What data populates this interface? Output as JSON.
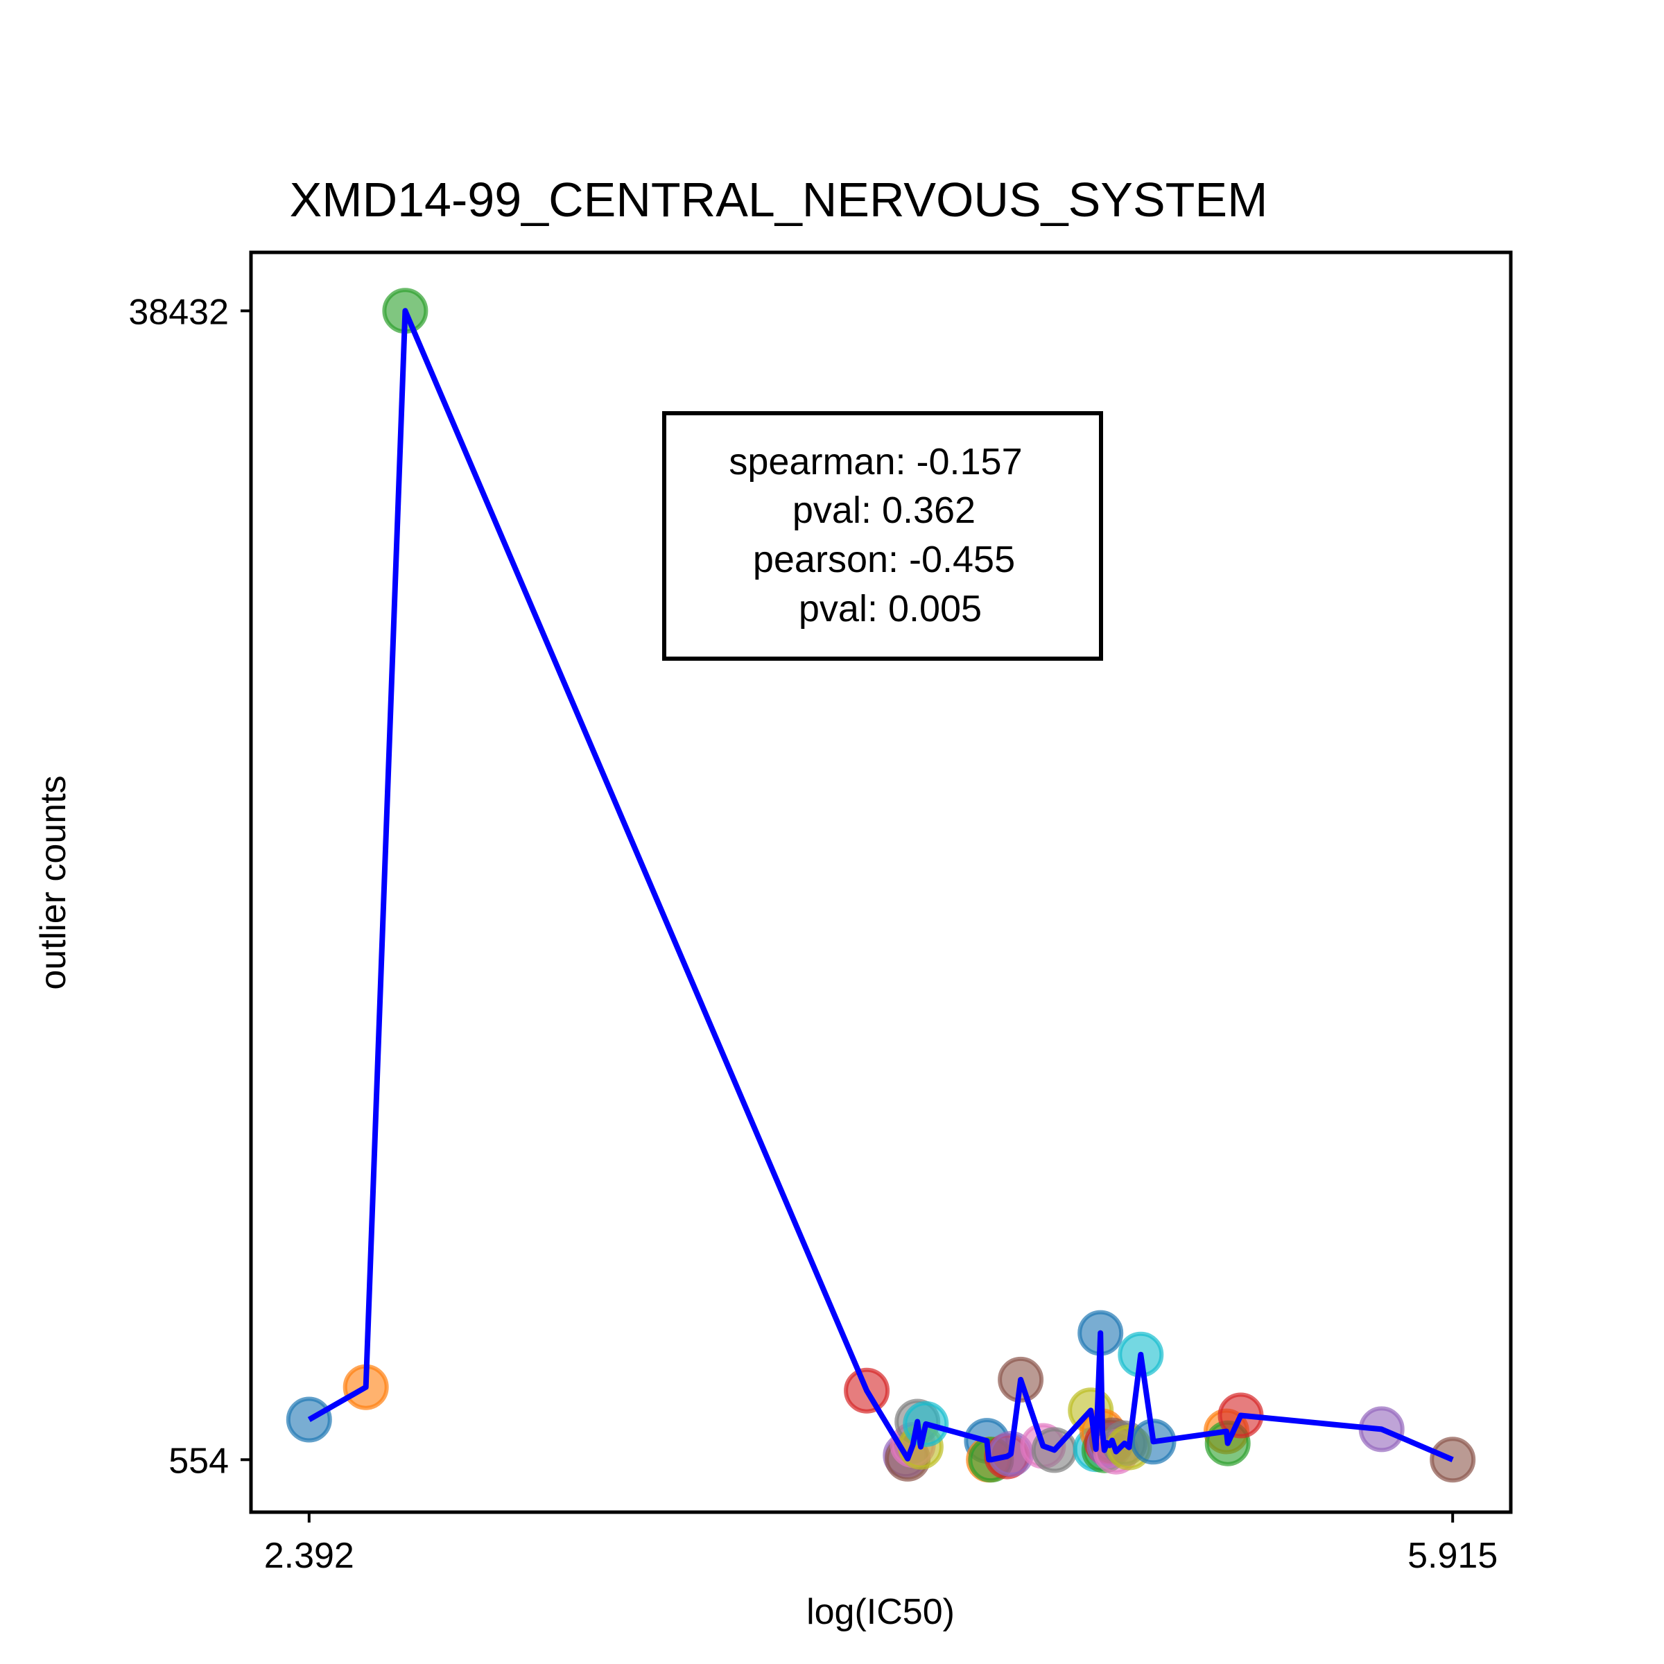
{
  "chart_data": {
    "type": "scatter",
    "title": "XMD14-99_CENTRAL_NERVOUS_SYSTEM",
    "xlabel": "log(IC50)",
    "ylabel": "outlier counts",
    "xlim": [
      2.213,
      6.094
    ],
    "ylim": [
      -1176,
      40360
    ],
    "xticks": [
      {
        "value": 2.392,
        "label": "2.392"
      },
      {
        "value": 5.915,
        "label": "5.915"
      }
    ],
    "yticks": [
      {
        "value": 554,
        "label": "554"
      },
      {
        "value": 38432,
        "label": "38432"
      }
    ],
    "line_color": "#0000ff",
    "stats_box": {
      "lines": [
        "spearman: -0.157",
        "pval: 0.362",
        "pearson: -0.455",
        "pval: 0.005"
      ]
    },
    "points": [
      {
        "x": 2.392,
        "y": 1876,
        "color": "#1f77b4"
      },
      {
        "x": 2.567,
        "y": 2945,
        "color": "#ff7f0e"
      },
      {
        "x": 2.688,
        "y": 38432,
        "color": "#2ca02c"
      },
      {
        "x": 4.11,
        "y": 2831,
        "color": "#d62728"
      },
      {
        "x": 4.23,
        "y": 696,
        "color": "#9467bd"
      },
      {
        "x": 4.236,
        "y": 586,
        "color": "#8c564b"
      },
      {
        "x": 4.252,
        "y": 1038,
        "color": "#e377c2"
      },
      {
        "x": 4.266,
        "y": 1808,
        "color": "#7f7f7f"
      },
      {
        "x": 4.276,
        "y": 980,
        "color": "#bcbd22"
      },
      {
        "x": 4.292,
        "y": 1730,
        "color": "#17becf"
      },
      {
        "x": 4.48,
        "y": 1176,
        "color": "#1f77b4"
      },
      {
        "x": 4.486,
        "y": 554,
        "color": "#ff7f0e"
      },
      {
        "x": 4.493,
        "y": 554,
        "color": "#2ca02c"
      },
      {
        "x": 4.542,
        "y": 663,
        "color": "#d62728"
      },
      {
        "x": 4.554,
        "y": 744,
        "color": "#9467bd"
      },
      {
        "x": 4.584,
        "y": 3192,
        "color": "#8c564b"
      },
      {
        "x": 4.653,
        "y": 1008,
        "color": "#e377c2"
      },
      {
        "x": 4.688,
        "y": 872,
        "color": "#7f7f7f"
      },
      {
        "x": 4.8,
        "y": 2180,
        "color": "#bcbd22"
      },
      {
        "x": 4.816,
        "y": 900,
        "color": "#17becf"
      },
      {
        "x": 4.83,
        "y": 4730,
        "color": "#1f77b4"
      },
      {
        "x": 4.836,
        "y": 1488,
        "color": "#ff7f0e"
      },
      {
        "x": 4.842,
        "y": 866,
        "color": "#2ca02c"
      },
      {
        "x": 4.85,
        "y": 1110,
        "color": "#d62728"
      },
      {
        "x": 4.858,
        "y": 1024,
        "color": "#9467bd"
      },
      {
        "x": 4.866,
        "y": 1190,
        "color": "#8c564b"
      },
      {
        "x": 4.878,
        "y": 820,
        "color": "#e377c2"
      },
      {
        "x": 4.904,
        "y": 1094,
        "color": "#7f7f7f"
      },
      {
        "x": 4.918,
        "y": 958,
        "color": "#bcbd22"
      },
      {
        "x": 4.954,
        "y": 4020,
        "color": "#17becf"
      },
      {
        "x": 4.993,
        "y": 1148,
        "color": "#1f77b4"
      },
      {
        "x": 5.218,
        "y": 1488,
        "color": "#ff7f0e"
      },
      {
        "x": 5.222,
        "y": 1094,
        "color": "#2ca02c"
      },
      {
        "x": 5.262,
        "y": 2013,
        "color": "#d62728"
      },
      {
        "x": 5.696,
        "y": 1558,
        "color": "#9467bd"
      },
      {
        "x": 5.915,
        "y": 554,
        "color": "#8c564b"
      }
    ]
  }
}
